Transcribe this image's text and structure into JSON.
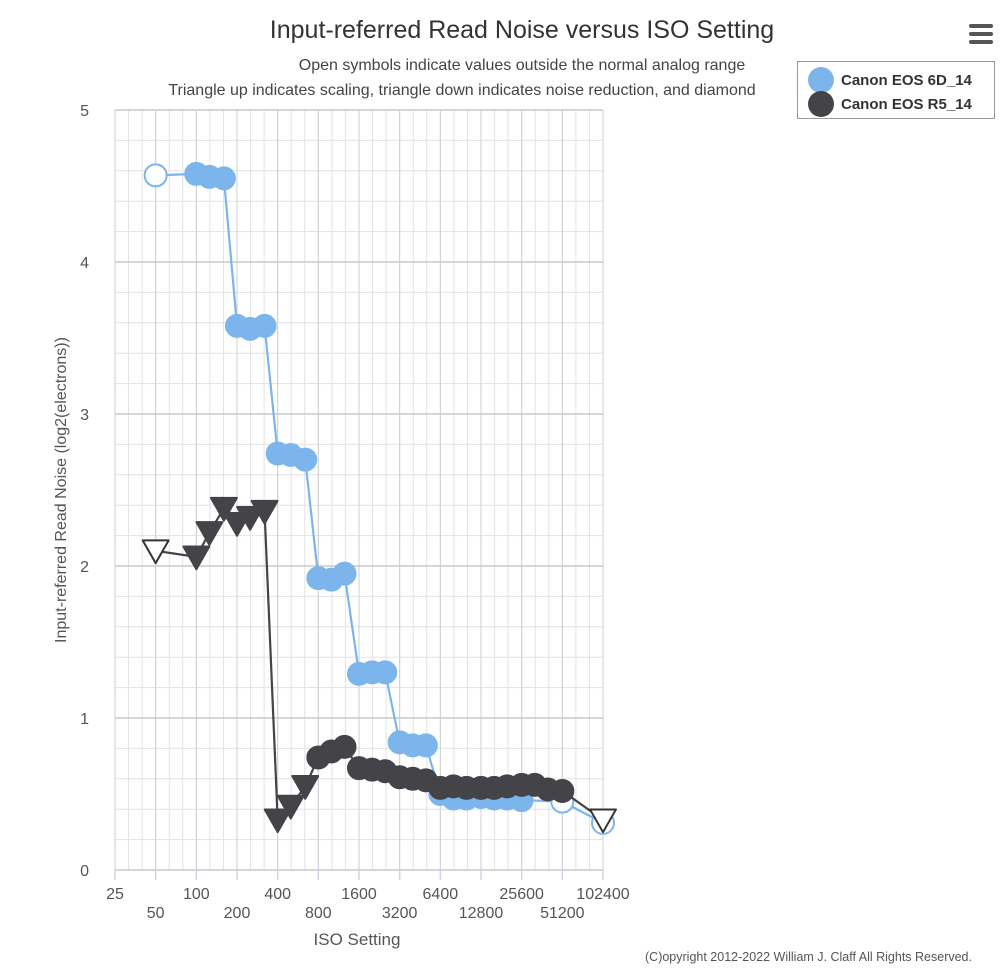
{
  "menu_icon": "hamburger-menu-icon",
  "copyright": "(C)opyright 2012-2022 William J. Claff All Rights Reserved.",
  "chart_data": {
    "type": "scatter",
    "title": "Input-referred Read Noise versus ISO Setting",
    "subtitle": [
      "Open symbols indicate values outside the normal analog range",
      "Triangle up indicates scaling, triangle down indicates noise reduction, and diamond"
    ],
    "xlabel": "ISO Setting",
    "ylabel": "Input-referred Read Noise (log2(electrons))",
    "x_scale": "log2",
    "xlim": [
      25,
      102400
    ],
    "ylim": [
      0,
      5
    ],
    "x_ticks_upper": [
      "25",
      "100",
      "400",
      "1600",
      "6400",
      "25600",
      "102400"
    ],
    "x_ticks_lower": [
      "50",
      "200",
      "800",
      "3200",
      "12800",
      "51200"
    ],
    "y_ticks": [
      "0",
      "1",
      "2",
      "3",
      "4",
      "5"
    ],
    "grid": true,
    "legend_position": "top-right",
    "series": [
      {
        "name": "Canon EOS 6D_14",
        "color": "#7cb5ec",
        "points": [
          {
            "x": 50,
            "y": 4.57,
            "marker": "circle-open"
          },
          {
            "x": 100,
            "y": 4.58,
            "marker": "circle"
          },
          {
            "x": 125,
            "y": 4.56,
            "marker": "circle"
          },
          {
            "x": 160,
            "y": 4.55,
            "marker": "circle"
          },
          {
            "x": 200,
            "y": 3.58,
            "marker": "circle"
          },
          {
            "x": 250,
            "y": 3.56,
            "marker": "circle"
          },
          {
            "x": 320,
            "y": 3.58,
            "marker": "circle"
          },
          {
            "x": 400,
            "y": 2.74,
            "marker": "circle"
          },
          {
            "x": 500,
            "y": 2.73,
            "marker": "circle"
          },
          {
            "x": 640,
            "y": 2.7,
            "marker": "circle"
          },
          {
            "x": 800,
            "y": 1.92,
            "marker": "circle"
          },
          {
            "x": 1000,
            "y": 1.91,
            "marker": "circle"
          },
          {
            "x": 1250,
            "y": 1.95,
            "marker": "circle"
          },
          {
            "x": 1600,
            "y": 1.29,
            "marker": "circle"
          },
          {
            "x": 2000,
            "y": 1.3,
            "marker": "circle"
          },
          {
            "x": 2500,
            "y": 1.3,
            "marker": "circle"
          },
          {
            "x": 3200,
            "y": 0.84,
            "marker": "circle"
          },
          {
            "x": 4000,
            "y": 0.82,
            "marker": "circle"
          },
          {
            "x": 5000,
            "y": 0.82,
            "marker": "circle"
          },
          {
            "x": 6400,
            "y": 0.5,
            "marker": "circle"
          },
          {
            "x": 8000,
            "y": 0.47,
            "marker": "circle"
          },
          {
            "x": 10000,
            "y": 0.47,
            "marker": "circle"
          },
          {
            "x": 12800,
            "y": 0.48,
            "marker": "circle"
          },
          {
            "x": 16000,
            "y": 0.47,
            "marker": "circle"
          },
          {
            "x": 20000,
            "y": 0.47,
            "marker": "circle"
          },
          {
            "x": 25600,
            "y": 0.46,
            "marker": "circle"
          },
          {
            "x": 51200,
            "y": 0.45,
            "marker": "circle-open"
          },
          {
            "x": 102400,
            "y": 0.31,
            "marker": "circle-open"
          }
        ]
      },
      {
        "name": "Canon EOS R5_14",
        "color": "#434348",
        "points": [
          {
            "x": 50,
            "y": 2.1,
            "marker": "triangle-down-open"
          },
          {
            "x": 100,
            "y": 2.06,
            "marker": "triangle-down"
          },
          {
            "x": 125,
            "y": 2.22,
            "marker": "triangle-down"
          },
          {
            "x": 160,
            "y": 2.38,
            "marker": "triangle-down"
          },
          {
            "x": 200,
            "y": 2.28,
            "marker": "triangle-down"
          },
          {
            "x": 250,
            "y": 2.32,
            "marker": "triangle-down"
          },
          {
            "x": 320,
            "y": 2.36,
            "marker": "triangle-down"
          },
          {
            "x": 400,
            "y": 0.33,
            "marker": "triangle-down"
          },
          {
            "x": 500,
            "y": 0.42,
            "marker": "triangle-down"
          },
          {
            "x": 640,
            "y": 0.55,
            "marker": "triangle-down"
          },
          {
            "x": 800,
            "y": 0.74,
            "marker": "circle"
          },
          {
            "x": 1000,
            "y": 0.78,
            "marker": "circle"
          },
          {
            "x": 1250,
            "y": 0.81,
            "marker": "circle"
          },
          {
            "x": 1600,
            "y": 0.67,
            "marker": "circle"
          },
          {
            "x": 2000,
            "y": 0.66,
            "marker": "circle"
          },
          {
            "x": 2500,
            "y": 0.65,
            "marker": "circle"
          },
          {
            "x": 3200,
            "y": 0.61,
            "marker": "circle"
          },
          {
            "x": 4000,
            "y": 0.6,
            "marker": "circle"
          },
          {
            "x": 5000,
            "y": 0.59,
            "marker": "circle"
          },
          {
            "x": 6400,
            "y": 0.54,
            "marker": "circle"
          },
          {
            "x": 8000,
            "y": 0.55,
            "marker": "circle"
          },
          {
            "x": 10000,
            "y": 0.54,
            "marker": "circle"
          },
          {
            "x": 12800,
            "y": 0.54,
            "marker": "circle"
          },
          {
            "x": 16000,
            "y": 0.54,
            "marker": "circle"
          },
          {
            "x": 20000,
            "y": 0.55,
            "marker": "circle"
          },
          {
            "x": 25600,
            "y": 0.56,
            "marker": "circle"
          },
          {
            "x": 32000,
            "y": 0.56,
            "marker": "circle"
          },
          {
            "x": 40000,
            "y": 0.53,
            "marker": "circle"
          },
          {
            "x": 51200,
            "y": 0.52,
            "marker": "circle"
          },
          {
            "x": 102400,
            "y": 0.33,
            "marker": "triangle-down-open"
          }
        ]
      }
    ]
  }
}
